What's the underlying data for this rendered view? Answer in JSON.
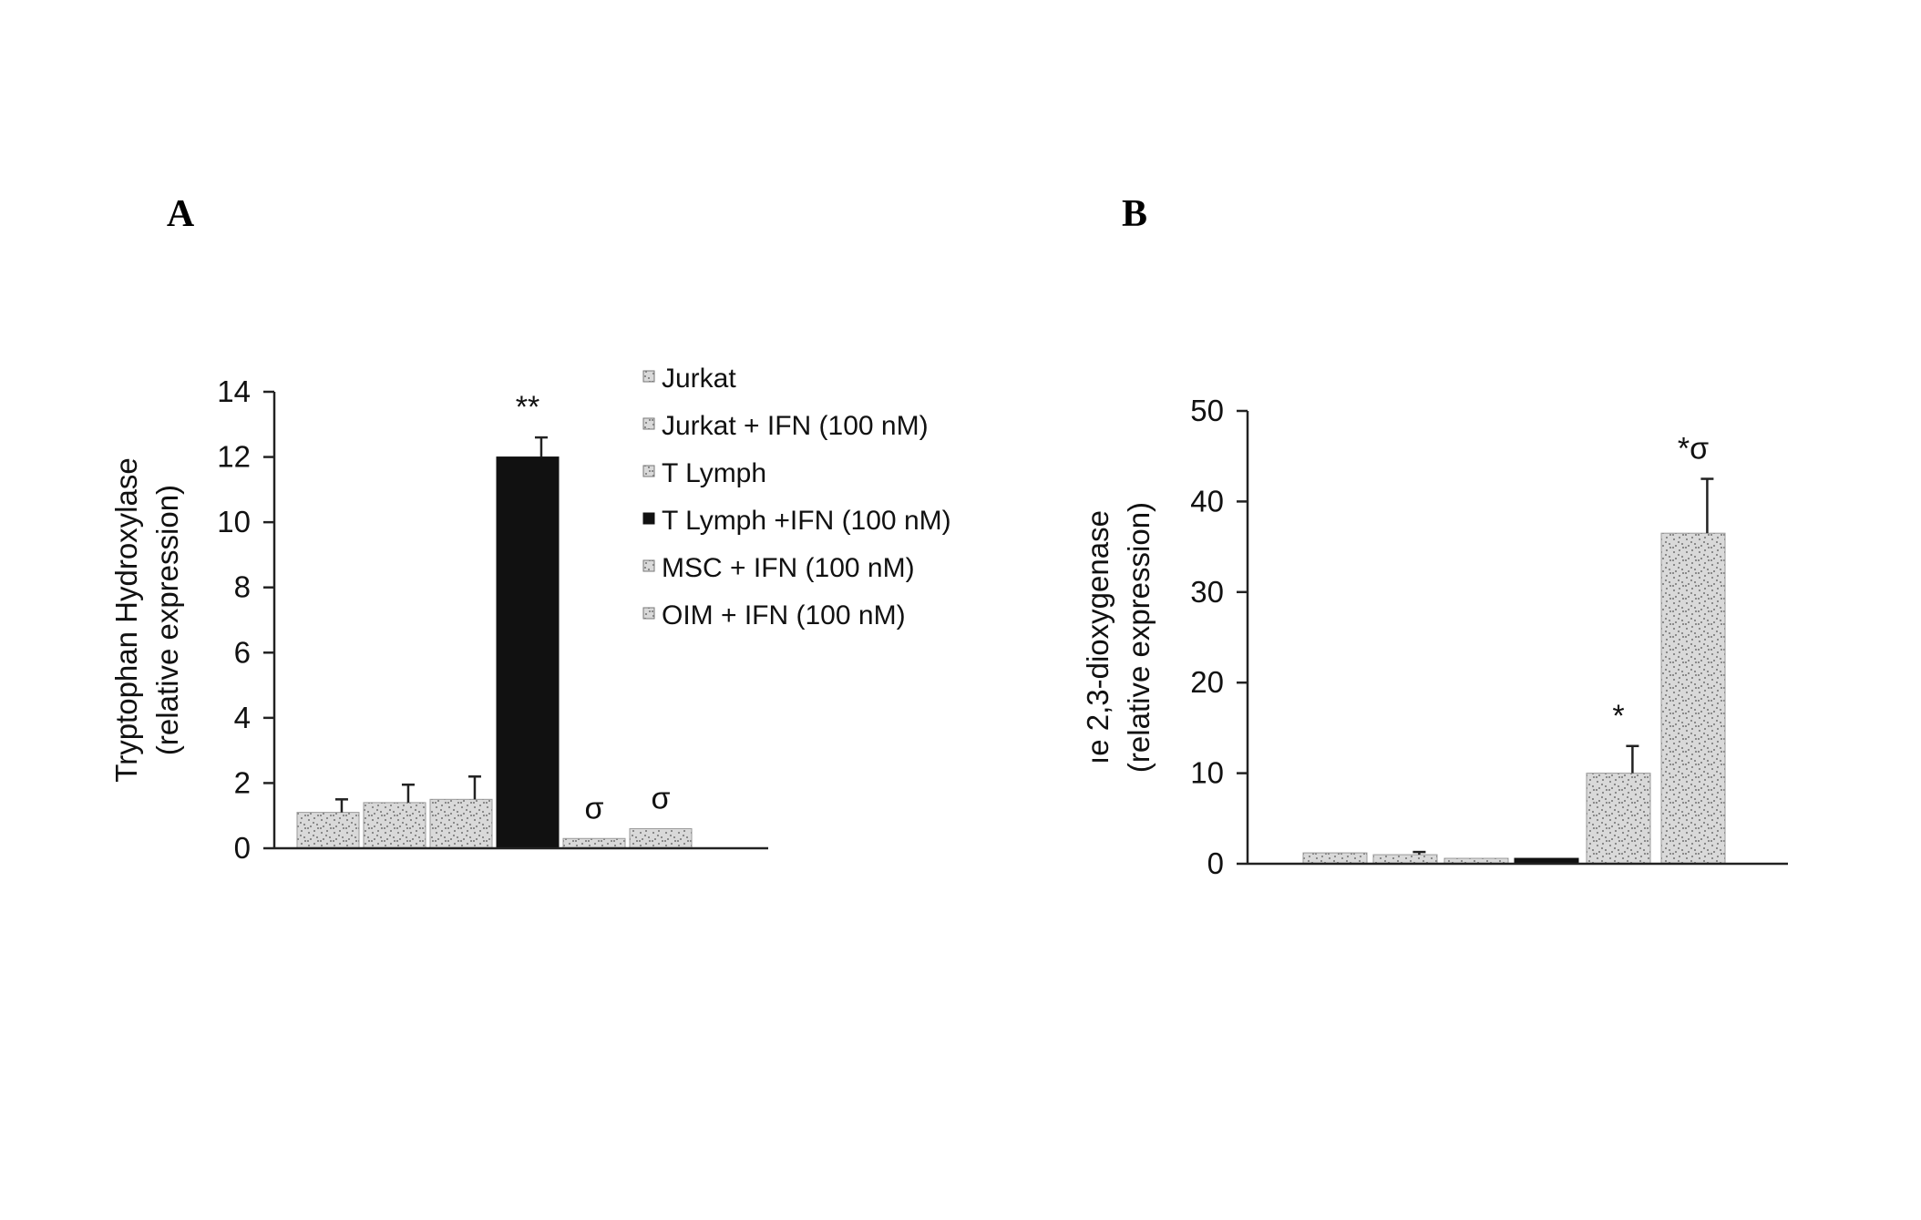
{
  "colors": {
    "axis": "#222222",
    "light_fill": "#d9d9d9",
    "dark_fill": "#111111",
    "speckle": "#8a8a8a"
  },
  "chart_data": [
    {
      "panel": "A",
      "type": "bar",
      "ylabel": [
        "Tryptophan Hydroxylase",
        "(relative expression)"
      ],
      "ylim": [
        0,
        14
      ],
      "yticks": [
        0,
        2,
        4,
        6,
        8,
        10,
        12,
        14
      ],
      "legend_position": "top-right",
      "series": [
        {
          "name": "Jurkat",
          "value": 1.1,
          "error": 0.4,
          "fill": "light",
          "annotation": ""
        },
        {
          "name": "Jurkat + IFN (100 nM)",
          "value": 1.4,
          "error": 0.55,
          "fill": "light",
          "annotation": ""
        },
        {
          "name": "T Lymph",
          "value": 1.5,
          "error": 0.7,
          "fill": "light",
          "annotation": ""
        },
        {
          "name": "T Lymph +IFN (100 nM)",
          "value": 12.0,
          "error": 0.6,
          "fill": "dark",
          "annotation": "**"
        },
        {
          "name": "MSC + IFN (100 nM)",
          "value": 0.3,
          "error": 0.0,
          "fill": "light",
          "annotation": "σ"
        },
        {
          "name": "OIM + IFN (100 nM)",
          "value": 0.6,
          "error": 0.0,
          "fill": "light",
          "annotation": "σ"
        }
      ]
    },
    {
      "panel": "B",
      "type": "bar",
      "ylabel": [
        "ıe 2,3-dioxygenase",
        "(relative expression)"
      ],
      "ylim": [
        0,
        50
      ],
      "yticks": [
        0,
        10,
        20,
        30,
        40,
        50
      ],
      "series": [
        {
          "name": "Jurkat",
          "value": 1.2,
          "error": 0.0,
          "fill": "light",
          "annotation": ""
        },
        {
          "name": "Jurkat + IFN (100 nM)",
          "value": 1.0,
          "error": 0.3,
          "fill": "light",
          "annotation": ""
        },
        {
          "name": "T Lymph",
          "value": 0.6,
          "error": 0.0,
          "fill": "light",
          "annotation": ""
        },
        {
          "name": "T Lymph +IFN (100 nM)",
          "value": 0.6,
          "error": 0.0,
          "fill": "dark",
          "annotation": ""
        },
        {
          "name": "MSC + IFN (100 nM)",
          "value": 10.0,
          "error": 3.0,
          "fill": "light",
          "annotation": "*"
        },
        {
          "name": "OIM + IFN (100 nM)",
          "value": 36.5,
          "error": 6.0,
          "fill": "light",
          "annotation": "*σ"
        }
      ]
    }
  ]
}
